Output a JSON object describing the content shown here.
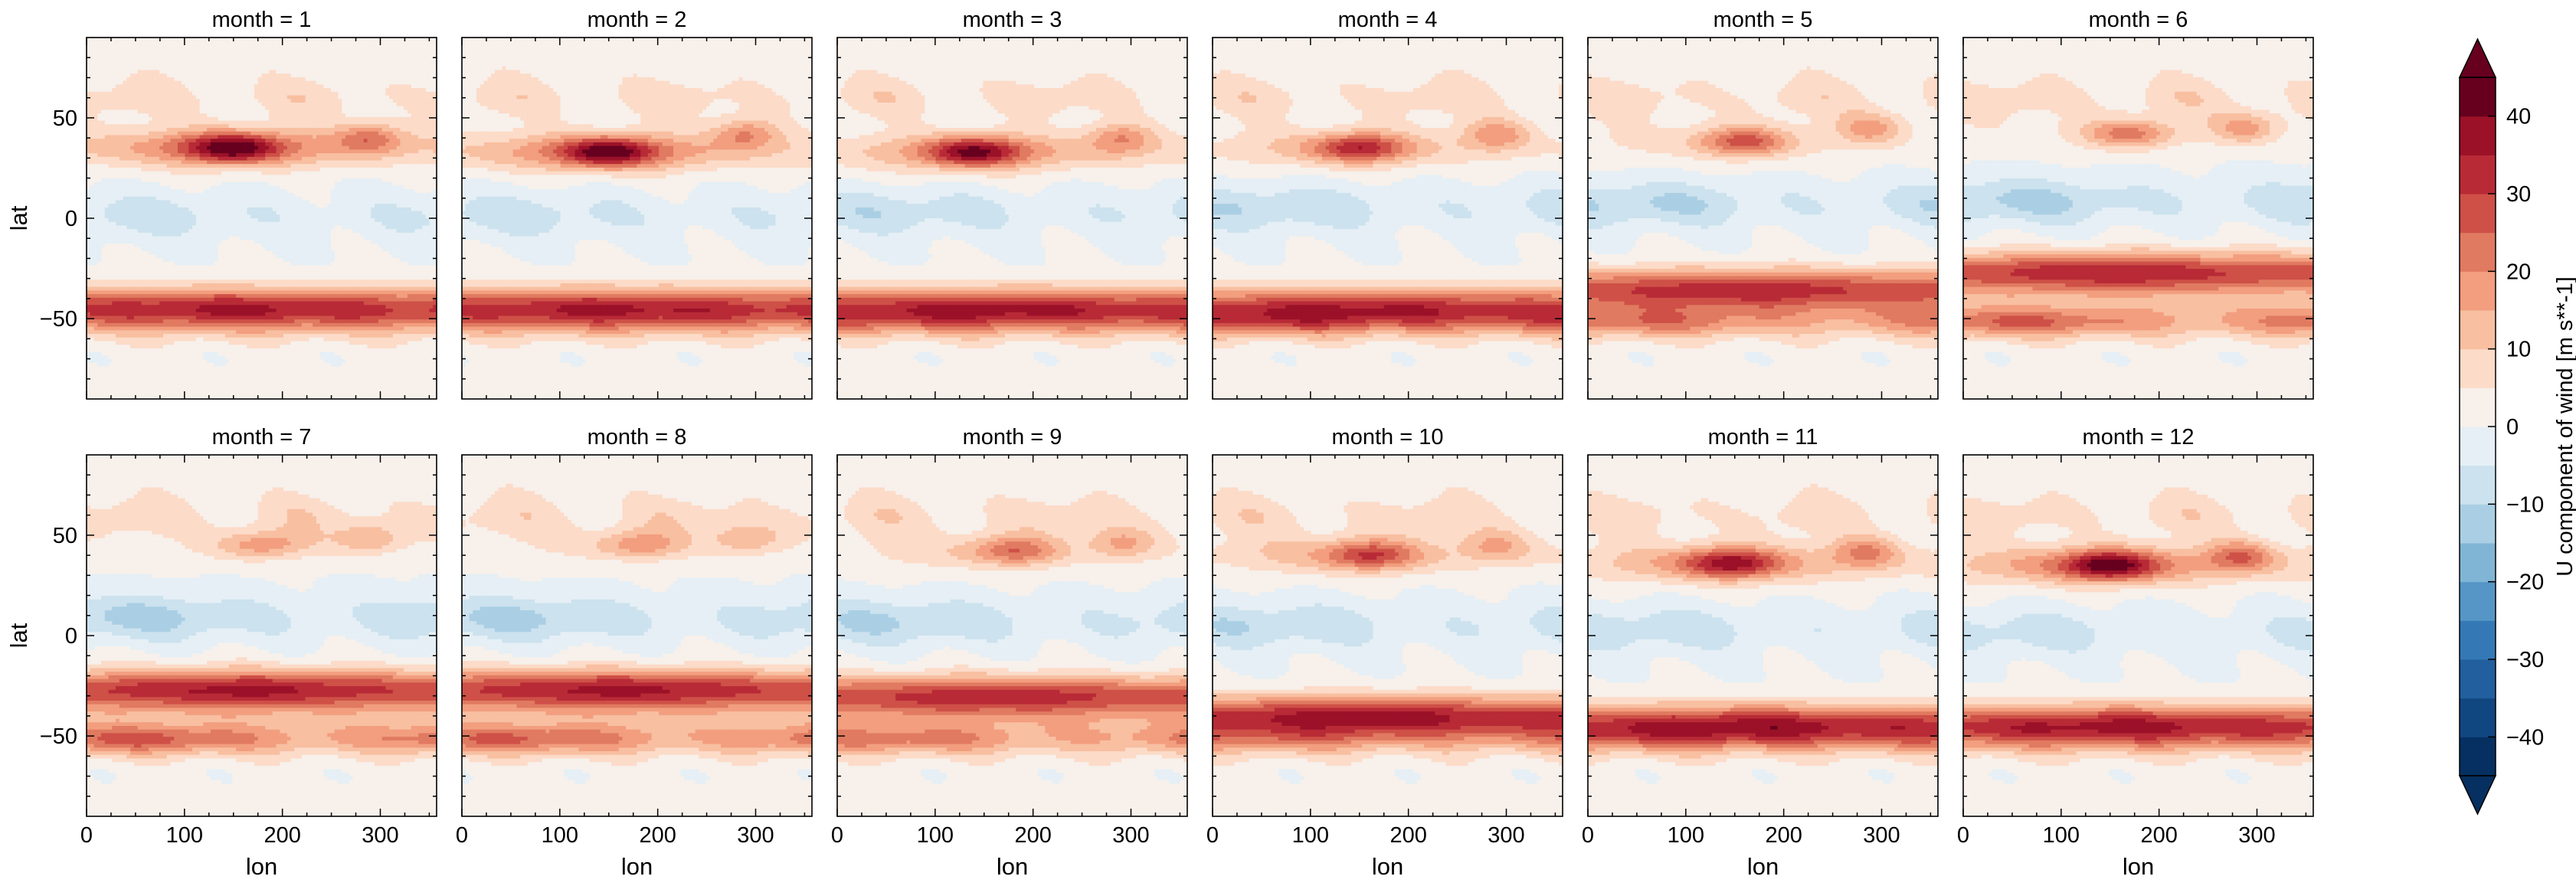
{
  "chart_data": {
    "type": "heatmap",
    "plot_kind": "filled-contour facet grid",
    "panels": [
      {
        "title": "month = 1",
        "month": 1
      },
      {
        "title": "month = 2",
        "month": 2
      },
      {
        "title": "month = 3",
        "month": 3
      },
      {
        "title": "month = 4",
        "month": 4
      },
      {
        "title": "month = 5",
        "month": 5
      },
      {
        "title": "month = 6",
        "month": 6
      },
      {
        "title": "month = 7",
        "month": 7
      },
      {
        "title": "month = 8",
        "month": 8
      },
      {
        "title": "month = 9",
        "month": 9
      },
      {
        "title": "month = 10",
        "month": 10
      },
      {
        "title": "month = 11",
        "month": 11
      },
      {
        "title": "month = 12",
        "month": 12
      }
    ],
    "layout": {
      "rows": 2,
      "cols": 6
    },
    "xlabel": "lon",
    "ylabel": "lat",
    "xlim": [
      0,
      357.5
    ],
    "ylim": [
      -90,
      90
    ],
    "xticks": [
      0,
      100,
      200,
      300
    ],
    "yticks": [
      -50,
      0,
      50
    ],
    "colorbar": {
      "label": "U component of wind [m s**-1]",
      "levels": [
        -45,
        -40,
        -35,
        -30,
        -25,
        -20,
        -15,
        -10,
        -5,
        0,
        5,
        10,
        15,
        20,
        25,
        30,
        35,
        40,
        45
      ],
      "ticks": [
        -40,
        -30,
        -20,
        -10,
        0,
        10,
        20,
        30,
        40
      ],
      "extend": "both",
      "colors": [
        "#053061",
        "#114781",
        "#215f9e",
        "#3479b6",
        "#5596c6",
        "#81b5d6",
        "#aacfe4",
        "#cce2ee",
        "#e5eff5",
        "#f7f0eb",
        "#fcdbc8",
        "#f8bfa1",
        "#f29e7f",
        "#e07a61",
        "#ce5047",
        "#b82a36",
        "#9b1128",
        "#67001f"
      ],
      "under_color": "#053061",
      "over_color": "#67001f"
    },
    "features": [
      {
        "month": 1,
        "nh_jet": {
          "lat": 35,
          "lon": 150,
          "peak": 46
        },
        "sh_jet": {
          "lat": -45,
          "peak": 30
        },
        "nh_secondary": {
          "lat": 40,
          "lon": 290,
          "peak": 33
        }
      },
      {
        "month": 2,
        "nh_jet": {
          "lat": 33,
          "lon": 150,
          "peak": 45
        },
        "sh_jet": {
          "lat": -45,
          "peak": 30
        },
        "nh_secondary": {
          "lat": 42,
          "lon": 290,
          "peak": 32
        }
      },
      {
        "month": 3,
        "nh_jet": {
          "lat": 33,
          "lon": 140,
          "peak": 42
        },
        "sh_jet": {
          "lat": -45,
          "peak": 30
        },
        "nh_secondary": {
          "lat": 40,
          "lon": 290,
          "peak": 28
        }
      },
      {
        "month": 4,
        "nh_jet": {
          "lat": 35,
          "lon": 150,
          "peak": 34
        },
        "sh_jet": {
          "lat": -45,
          "peak": 28
        },
        "nh_secondary": {
          "lat": 42,
          "lon": 290,
          "peak": 24
        }
      },
      {
        "month": 5,
        "nh_jet": {
          "lat": 38,
          "lon": 160,
          "peak": 27
        },
        "sh_jet": {
          "lat": -35,
          "peak": 33
        },
        "nh_secondary": {
          "lat": 45,
          "lon": 290,
          "peak": 20
        }
      },
      {
        "month": 6,
        "nh_jet": {
          "lat": 42,
          "lon": 170,
          "peak": 22
        },
        "sh_jet": {
          "lat": -27,
          "peak": 38
        },
        "nh_secondary": {
          "lat": 45,
          "lon": 290,
          "peak": 18
        }
      },
      {
        "month": 7,
        "nh_jet": {
          "lat": 45,
          "lon": 180,
          "peak": 18
        },
        "sh_jet": {
          "lat": -27,
          "peak": 40
        },
        "nh_secondary": {
          "lat": 48,
          "lon": 290,
          "peak": 15
        }
      },
      {
        "month": 8,
        "nh_jet": {
          "lat": 45,
          "lon": 180,
          "peak": 18
        },
        "sh_jet": {
          "lat": -27,
          "peak": 40
        },
        "nh_secondary": {
          "lat": 48,
          "lon": 290,
          "peak": 15
        }
      },
      {
        "month": 9,
        "nh_jet": {
          "lat": 42,
          "lon": 180,
          "peak": 24
        },
        "sh_jet": {
          "lat": -30,
          "peak": 36
        },
        "nh_secondary": {
          "lat": 46,
          "lon": 290,
          "peak": 18
        }
      },
      {
        "month": 10,
        "nh_jet": {
          "lat": 40,
          "lon": 160,
          "peak": 30
        },
        "sh_jet": {
          "lat": -40,
          "peak": 34
        },
        "nh_secondary": {
          "lat": 45,
          "lon": 290,
          "peak": 20
        }
      },
      {
        "month": 11,
        "nh_jet": {
          "lat": 36,
          "lon": 145,
          "peak": 38
        },
        "sh_jet": {
          "lat": -45,
          "peak": 32
        },
        "nh_secondary": {
          "lat": 42,
          "lon": 285,
          "peak": 28
        }
      },
      {
        "month": 12,
        "nh_jet": {
          "lat": 35,
          "lon": 150,
          "peak": 44
        },
        "sh_jet": {
          "lat": -45,
          "peak": 31
        },
        "nh_secondary": {
          "lat": 40,
          "lon": 285,
          "peak": 33
        }
      }
    ]
  }
}
